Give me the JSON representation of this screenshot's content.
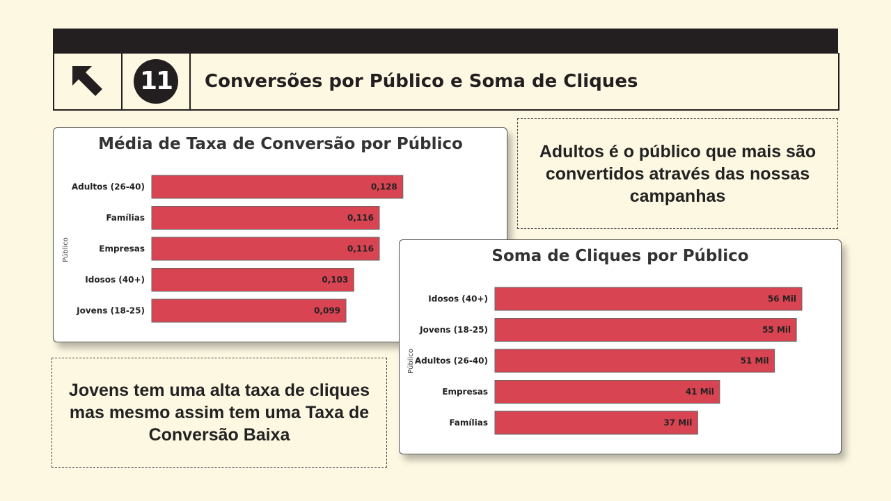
{
  "header": {
    "number": "11",
    "title": "Conversões por Público e Soma de Cliques"
  },
  "notes": {
    "adultos": "Adultos é o público que mais são convertidos através das nossas campanhas",
    "jovens": "Jovens tem uma alta taxa de cliques mas mesmo assim tem uma Taxa de Conversão Baixa"
  },
  "colors": {
    "bar": "#d94452",
    "background": "#fdf8e2",
    "dark": "#231f20"
  },
  "chart_data": [
    {
      "type": "bar",
      "orientation": "horizontal",
      "title": "Média de Taxa de Conversão por Público",
      "ylabel": "Público",
      "xlabel": "",
      "categories": [
        "Adultos (26-40)",
        "Famílias",
        "Empresas",
        "Idosos (40+)",
        "Jovens (18-25)"
      ],
      "values": [
        0.128,
        0.116,
        0.116,
        0.103,
        0.099
      ],
      "value_labels": [
        "0,128",
        "0,116",
        "0,116",
        "0,103",
        "0,099"
      ],
      "xlim": [
        0,
        0.16
      ]
    },
    {
      "type": "bar",
      "orientation": "horizontal",
      "title": "Soma de Cliques por Público",
      "ylabel": "Público",
      "xlabel": "",
      "categories": [
        "Idosos (40+)",
        "Jovens (18-25)",
        "Adultos (26-40)",
        "Empresas",
        "Famílias"
      ],
      "values": [
        56000,
        55000,
        51000,
        41000,
        37000
      ],
      "value_labels": [
        "56 Mil",
        "55 Mil",
        "51 Mil",
        "41 Mil",
        "37 Mil"
      ],
      "xlim": [
        0,
        56000
      ]
    }
  ]
}
